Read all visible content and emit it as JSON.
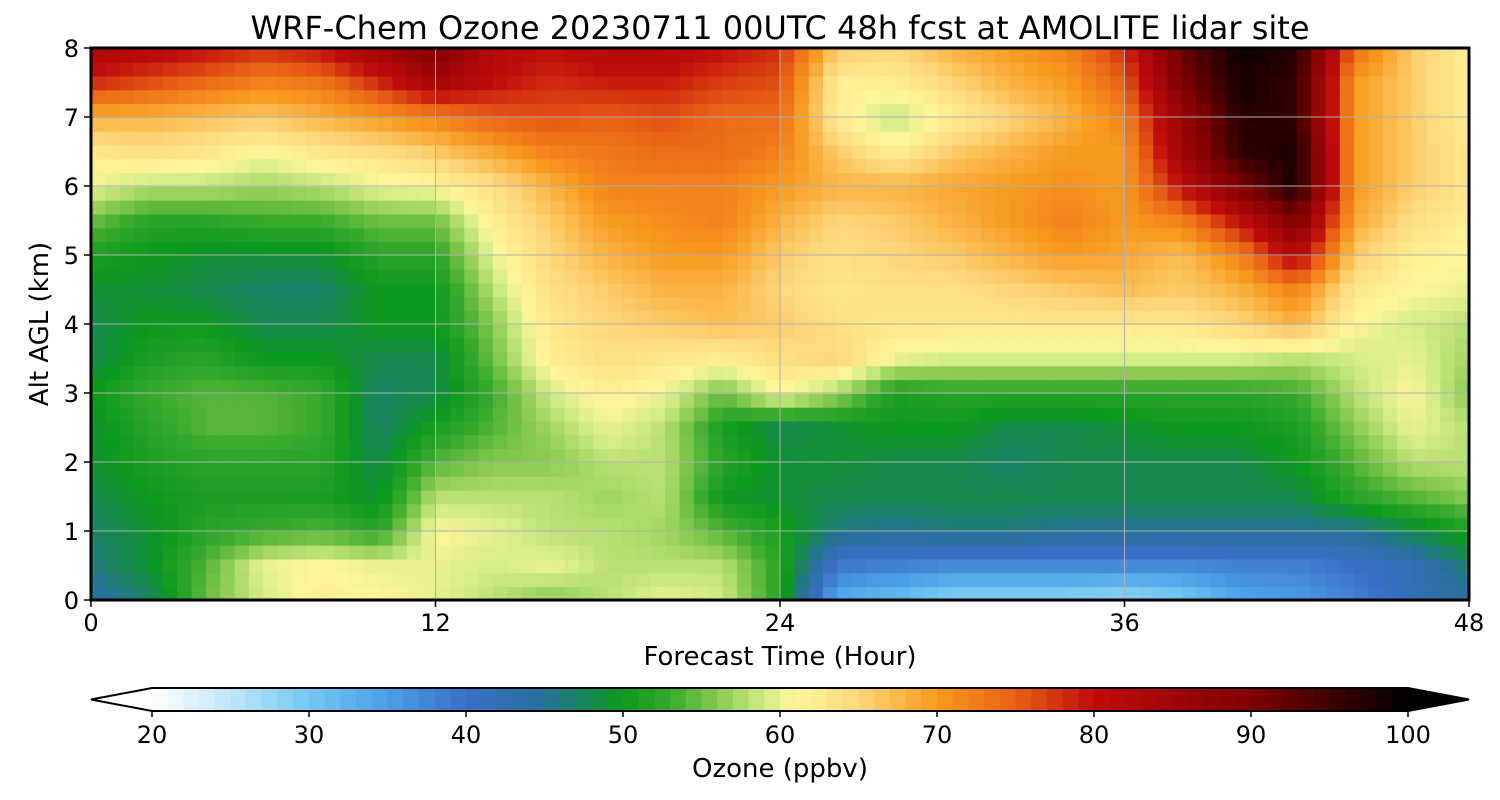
{
  "chart_data": {
    "type": "heatmap",
    "title": "WRF-Chem Ozone  20230711 00UTC 48h fcst at AMOLITE lidar site",
    "xlabel": "Forecast Time (Hour)",
    "ylabel": "Alt AGL (km)",
    "xlim": [
      0,
      48
    ],
    "ylim": [
      0,
      8
    ],
    "x_ticks": [
      "0",
      "12",
      "24",
      "36",
      "48"
    ],
    "y_ticks": [
      "0",
      "1",
      "2",
      "3",
      "4",
      "5",
      "6",
      "7",
      "8"
    ],
    "grid": true,
    "colorbar": {
      "label": "Ozone  (ppbv)",
      "range": [
        20,
        100
      ],
      "ticks": [
        "20",
        "30",
        "40",
        "50",
        "60",
        "70",
        "80",
        "90",
        "100"
      ],
      "extend": "both",
      "placement": "bottom"
    },
    "grid_x": [
      0,
      2,
      4,
      6,
      8,
      10,
      12,
      14,
      16,
      18,
      20,
      22,
      24,
      26,
      28,
      30,
      32,
      34,
      36,
      38,
      40,
      42,
      44,
      46,
      48
    ],
    "grid_y": [
      0,
      0.5,
      1,
      1.5,
      2,
      2.5,
      3,
      3.5,
      4,
      4.5,
      5,
      5.5,
      6,
      6.5,
      7,
      7.5,
      8
    ],
    "values": [
      [
        44,
        47,
        55,
        59,
        62,
        61,
        60,
        58,
        56,
        58,
        60,
        59,
        52,
        33,
        31,
        28,
        28,
        28,
        27,
        29,
        34,
        35,
        38,
        42,
        44
      ],
      [
        46,
        49,
        54,
        60,
        61,
        60,
        60,
        59,
        60,
        58,
        58,
        58,
        52,
        39,
        38,
        37,
        37,
        37,
        37,
        37,
        38,
        38,
        40,
        42,
        47
      ],
      [
        47,
        49,
        52,
        53,
        54,
        52,
        61,
        60,
        58,
        58,
        57,
        54,
        51,
        46,
        45,
        46,
        46,
        45,
        45,
        45,
        45,
        45,
        45,
        48,
        51
      ],
      [
        48,
        50,
        51,
        51,
        51,
        49,
        58,
        58,
        58,
        57,
        58,
        50,
        49,
        48,
        48,
        48,
        48,
        48,
        48,
        48,
        48,
        48,
        52,
        54,
        56
      ],
      [
        49,
        51,
        52,
        52,
        52,
        48,
        54,
        56,
        56,
        58,
        58,
        52,
        49,
        49,
        48,
        48,
        47,
        48,
        48,
        48,
        48,
        50,
        54,
        58,
        58
      ],
      [
        49,
        52,
        54,
        54,
        53,
        47,
        51,
        54,
        57,
        60,
        58,
        51,
        48,
        49,
        50,
        50,
        48,
        48,
        49,
        50,
        50,
        51,
        56,
        60,
        58
      ],
      [
        50,
        53,
        54,
        54,
        53,
        47,
        48,
        53,
        59,
        62,
        60,
        55,
        61,
        57,
        51,
        52,
        52,
        52,
        52,
        52,
        52,
        53,
        58,
        61,
        56
      ],
      [
        48,
        51,
        52,
        50,
        50,
        48,
        48,
        55,
        62,
        64,
        63,
        62,
        64,
        65,
        60,
        59,
        59,
        59,
        59,
        59,
        59,
        58,
        59,
        60,
        57
      ],
      [
        48,
        50,
        50,
        48,
        48,
        50,
        50,
        56,
        63,
        65,
        66,
        67,
        66,
        64,
        63,
        63,
        63,
        63,
        63,
        63,
        65,
        68,
        61,
        59,
        58
      ],
      [
        49,
        49,
        48,
        47,
        47,
        50,
        50,
        58,
        64,
        66,
        68,
        68,
        65,
        63,
        64,
        64,
        65,
        66,
        67,
        66,
        68,
        72,
        63,
        61,
        60
      ],
      [
        51,
        50,
        49,
        49,
        49,
        52,
        52,
        60,
        65,
        68,
        70,
        70,
        66,
        64,
        65,
        66,
        68,
        70,
        69,
        67,
        72,
        82,
        66,
        62,
        61
      ],
      [
        55,
        52,
        52,
        53,
        53,
        55,
        55,
        62,
        66,
        70,
        71,
        72,
        68,
        65,
        66,
        68,
        70,
        72,
        70,
        72,
        80,
        90,
        69,
        64,
        62
      ],
      [
        60,
        58,
        58,
        57,
        58,
        60,
        61,
        64,
        68,
        72,
        72,
        72,
        70,
        68,
        68,
        69,
        70,
        71,
        70,
        80,
        90,
        98,
        70,
        66,
        63
      ],
      [
        63,
        64,
        63,
        61,
        63,
        64,
        66,
        69,
        72,
        73,
        74,
        74,
        72,
        66,
        62,
        66,
        68,
        70,
        70,
        85,
        96,
        98,
        70,
        66,
        63
      ],
      [
        68,
        68,
        67,
        66,
        68,
        70,
        72,
        75,
        76,
        75,
        76,
        74,
        74,
        62,
        58,
        62,
        65,
        68,
        72,
        86,
        97,
        96,
        70,
        66,
        62
      ],
      [
        78,
        76,
        74,
        72,
        73,
        78,
        84,
        80,
        78,
        79,
        79,
        77,
        76,
        62,
        62,
        65,
        68,
        70,
        75,
        90,
        98,
        96,
        70,
        66,
        62
      ],
      [
        84,
        82,
        80,
        78,
        80,
        85,
        90,
        82,
        80,
        82,
        82,
        80,
        78,
        66,
        65,
        68,
        70,
        72,
        78,
        92,
        99,
        97,
        74,
        66,
        62
      ]
    ]
  }
}
